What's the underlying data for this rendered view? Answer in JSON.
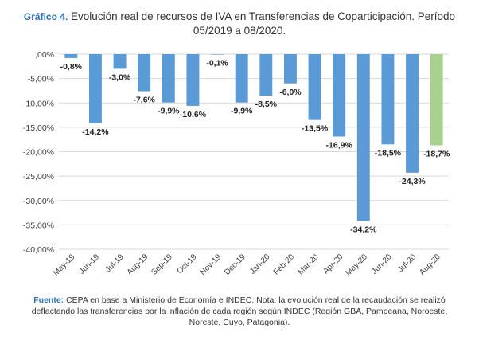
{
  "title": {
    "label": "Gráfico 4.",
    "line1": "Evolución real de recursos de IVA en Transferencias de Coparticipación. Período",
    "line2": "05/2019 a 08/2020."
  },
  "source": {
    "label": "Fuente:",
    "line1": "CEPA en base a Ministerio de Economía e INDEC. Nota: la evolución real de la recaudación se realizó",
    "line2": "deflactando las transferencias por la inflación de cada región según INDEC (Región GBA, Pampeana, Noroeste,",
    "line3": "Noreste, Cuyo, Patagonia)."
  },
  "colors": {
    "bar": "#5b9bd5",
    "highlight": "#a9d18e"
  },
  "chart_data": {
    "type": "bar",
    "categories": [
      "May-19",
      "Jun-19",
      "Jul-19",
      "Aug-19",
      "Sep-19",
      "Oct-19",
      "Nov-19",
      "Dec-19",
      "Jan-20",
      "Feb-20",
      "Mar-20",
      "Apr-20",
      "May-20",
      "Jun-20",
      "Jul-20",
      "Aug-20"
    ],
    "values": [
      -0.8,
      -14.2,
      -3.0,
      -7.6,
      -9.9,
      -10.6,
      -0.1,
      -9.9,
      -8.5,
      -6.0,
      -13.5,
      -16.9,
      -34.2,
      -18.5,
      -24.3,
      -18.7
    ],
    "data_labels": [
      "-0,8%",
      "-14,2%",
      "-3,0%",
      "-7,6%",
      "-9,9%",
      "-10,6%",
      "-0,1%",
      "-9,9%",
      "-8,5%",
      "-6,0%",
      "-13,5%",
      "-16,9%",
      "-34,2%",
      "-18,5%",
      "-24,3%",
      "-18,7%"
    ],
    "highlight_index": 15,
    "ylim": [
      -40,
      0
    ],
    "yticks": [
      0,
      -5,
      -10,
      -15,
      -20,
      -25,
      -30,
      -35,
      -40
    ],
    "ytick_labels": [
      ",00%",
      "-5,00%",
      "-10,00%",
      "-15,00%",
      "-20,00%",
      "-25,00%",
      "-30,00%",
      "-35,00%",
      "-40,00%"
    ],
    "grid": true,
    "xlabel": "",
    "ylabel": ""
  }
}
